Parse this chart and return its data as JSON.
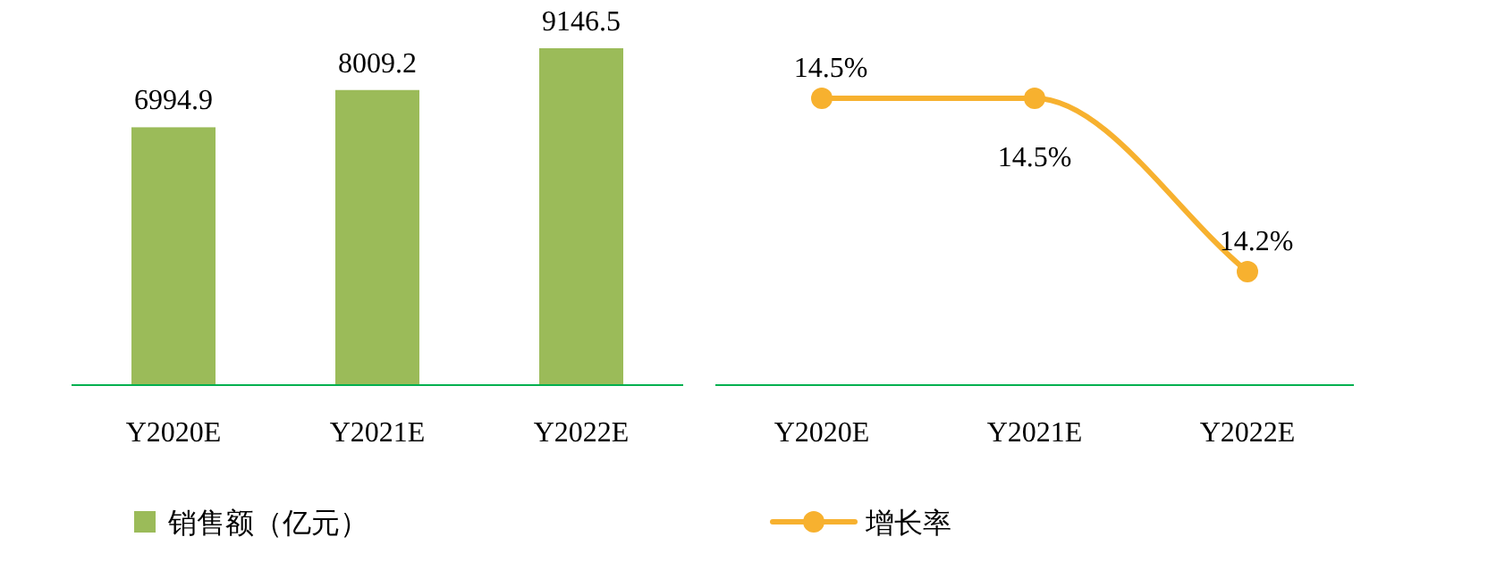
{
  "chart_data": [
    {
      "type": "bar",
      "categories": [
        "Y2020E",
        "Y2021E",
        "Y2022E"
      ],
      "series": [
        {
          "name": "销售额（亿元）",
          "color": "#9bbb59",
          "values": [
            6994.9,
            8009.2,
            9146.5
          ]
        }
      ],
      "data_labels": true,
      "legend": "bottom"
    },
    {
      "type": "line",
      "categories": [
        "Y2020E",
        "Y2021E",
        "Y2022E"
      ],
      "series": [
        {
          "name": "增长率",
          "color": "#f7b12f",
          "values": [
            14.5,
            14.5,
            14.2
          ],
          "value_labels": [
            "14.5%",
            "14.5%",
            "14.2%"
          ]
        }
      ],
      "marker": "circle",
      "legend": "bottom"
    }
  ]
}
